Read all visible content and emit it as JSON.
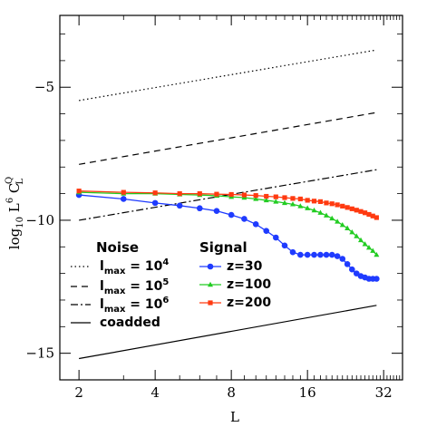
{
  "chart_data": {
    "type": "line",
    "xlabel": "L",
    "ylabel": "log10 L^6 C_L^Q",
    "ylabel_main": "log",
    "ylabel_sub": "10",
    "ylabel_mid": " L",
    "ylabel_sup": "6",
    "ylabel_end": " C",
    "ylabel_end_sub": "L",
    "ylabel_end_sup": "Q",
    "x_scale": "log2",
    "xlim": [
      1.68,
      38
    ],
    "ylim": [
      -16.0,
      -2.3
    ],
    "xticks": [
      2,
      4,
      8,
      16,
      32
    ],
    "xtick_labels": [
      "2",
      "4",
      "8",
      "16",
      "32"
    ],
    "yticks": [
      -5,
      -10,
      -15
    ],
    "ytick_labels": [
      "−5",
      "−10",
      "−15"
    ],
    "legend_noise_title": "Noise",
    "legend_signal_title": "Signal",
    "noise_series": [
      {
        "name": "l_max = 10^4",
        "label_main": "l",
        "label_sub": "max",
        "label_eq": " = 10",
        "label_sup": "4",
        "style": "dotted",
        "x": [
          2,
          30
        ],
        "y": [
          -5.5,
          -3.6
        ]
      },
      {
        "name": "l_max = 10^5",
        "label_main": "l",
        "label_sub": "max",
        "label_eq": " = 10",
        "label_sup": "5",
        "style": "dashed",
        "x": [
          2,
          30
        ],
        "y": [
          -7.9,
          -5.95
        ]
      },
      {
        "name": "l_max = 10^6",
        "label_main": "l",
        "label_sub": "max",
        "label_eq": " = 10",
        "label_sup": "6",
        "style": "dashdot",
        "x": [
          2,
          30
        ],
        "y": [
          -10.0,
          -8.1
        ]
      },
      {
        "name": "coadded",
        "label_main": "coadded",
        "label_sub": "",
        "label_eq": "",
        "label_sup": "",
        "style": "solid",
        "x": [
          2,
          30
        ],
        "y": [
          -15.2,
          -13.2
        ]
      }
    ],
    "signal_series": [
      {
        "name": "z=30",
        "color": "#1f3bff",
        "marker": "circle",
        "x": [
          2,
          3,
          4,
          5,
          6,
          7,
          8,
          9,
          10,
          11,
          12,
          13,
          14,
          15,
          16,
          17,
          18,
          19,
          20,
          21,
          22,
          23,
          24,
          25,
          26,
          27,
          28,
          29,
          30
        ],
        "y": [
          -9.05,
          -9.2,
          -9.35,
          -9.45,
          -9.55,
          -9.65,
          -9.8,
          -9.95,
          -10.15,
          -10.4,
          -10.65,
          -10.95,
          -11.2,
          -11.3,
          -11.3,
          -11.3,
          -11.3,
          -11.3,
          -11.3,
          -11.35,
          -11.45,
          -11.65,
          -11.85,
          -12.0,
          -12.1,
          -12.15,
          -12.2,
          -12.2,
          -12.2
        ]
      },
      {
        "name": "z=100",
        "color": "#22cc22",
        "marker": "triangle",
        "x": [
          2,
          3,
          4,
          5,
          6,
          7,
          8,
          9,
          10,
          11,
          12,
          13,
          14,
          15,
          16,
          17,
          18,
          19,
          20,
          21,
          22,
          23,
          24,
          25,
          26,
          27,
          28,
          29,
          30
        ],
        "y": [
          -8.95,
          -9.0,
          -9.0,
          -9.03,
          -9.05,
          -9.08,
          -9.12,
          -9.15,
          -9.2,
          -9.25,
          -9.3,
          -9.35,
          -9.4,
          -9.47,
          -9.55,
          -9.63,
          -9.72,
          -9.82,
          -9.93,
          -10.05,
          -10.18,
          -10.3,
          -10.45,
          -10.6,
          -10.75,
          -10.9,
          -11.03,
          -11.15,
          -11.3
        ]
      },
      {
        "name": "z=200",
        "color": "#ff3a10",
        "marker": "square",
        "x": [
          2,
          3,
          4,
          5,
          6,
          7,
          8,
          9,
          10,
          11,
          12,
          13,
          14,
          15,
          16,
          17,
          18,
          19,
          20,
          21,
          22,
          23,
          24,
          25,
          26,
          27,
          28,
          29,
          30
        ],
        "y": [
          -8.9,
          -8.95,
          -8.97,
          -9.0,
          -9.0,
          -9.02,
          -9.03,
          -9.05,
          -9.07,
          -9.1,
          -9.12,
          -9.15,
          -9.18,
          -9.2,
          -9.25,
          -9.28,
          -9.3,
          -9.35,
          -9.38,
          -9.42,
          -9.47,
          -9.52,
          -9.57,
          -9.62,
          -9.67,
          -9.72,
          -9.78,
          -9.84,
          -9.9
        ]
      }
    ],
    "grid": false
  }
}
